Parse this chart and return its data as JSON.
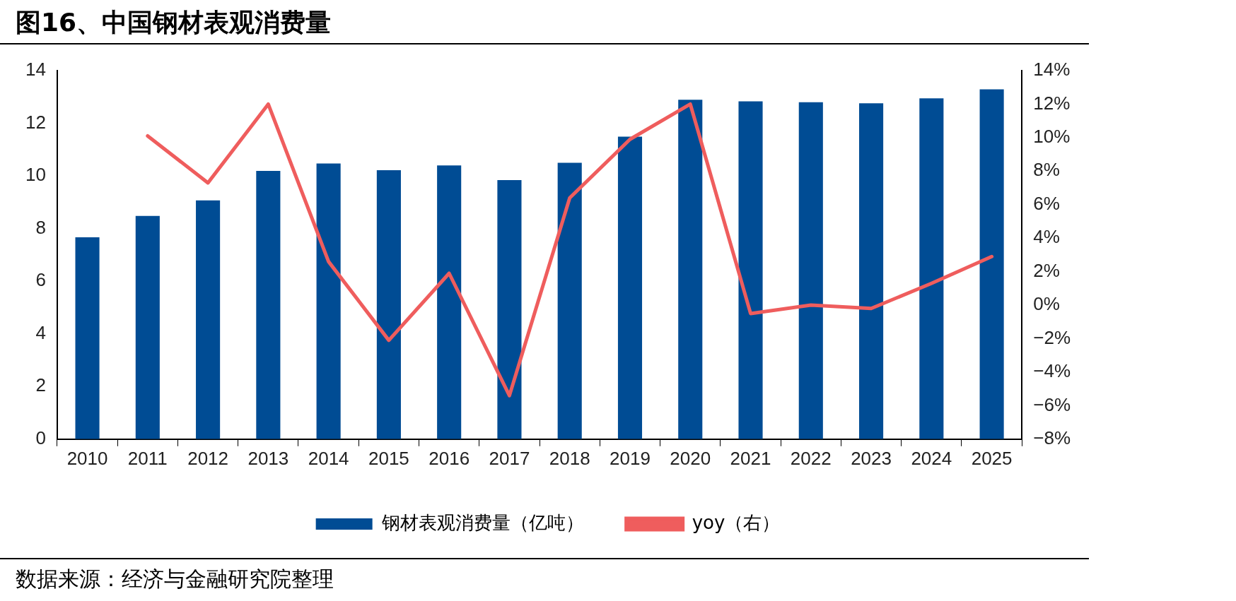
{
  "chart_data": {
    "type": "bar",
    "title": "图16、中国钢材表观消费量",
    "categories": [
      "2010",
      "2011",
      "2012",
      "2013",
      "2014",
      "2015",
      "2016",
      "2017",
      "2018",
      "2019",
      "2020",
      "2021",
      "2022",
      "2023",
      "2024",
      "2025"
    ],
    "series": [
      {
        "name": "钢材表观消费量（亿吨）",
        "color": "#004c94",
        "values": [
          7.67,
          8.48,
          9.07,
          10.19,
          10.47,
          10.22,
          10.4,
          9.84,
          10.5,
          11.49,
          12.89,
          12.83,
          12.8,
          12.76,
          12.95,
          13.29
        ]
      },
      {
        "name": "yoy（右）",
        "type": "line",
        "axis": "y2",
        "color": "#ef5d5d",
        "values": [
          null,
          10.1,
          7.3,
          12.0,
          2.6,
          -2.1,
          1.9,
          -5.4,
          6.4,
          9.9,
          12.0,
          -0.5,
          0.0,
          -0.2,
          1.3,
          2.9
        ]
      }
    ],
    "ylim": [
      0,
      14
    ],
    "yticks": [
      0,
      2,
      4,
      6,
      8,
      10,
      12,
      14
    ],
    "y2lim": [
      -8,
      14
    ],
    "y2ticks": [
      {
        "value": -8,
        "label": "−8%"
      },
      {
        "value": -6,
        "label": "−6%"
      },
      {
        "value": -4,
        "label": "−4%"
      },
      {
        "value": -2,
        "label": "−2%"
      },
      {
        "value": 0,
        "label": "0%"
      },
      {
        "value": 2,
        "label": "2%"
      },
      {
        "value": 4,
        "label": "4%"
      },
      {
        "value": 6,
        "label": "6%"
      },
      {
        "value": 8,
        "label": "8%"
      },
      {
        "value": 10,
        "label": "10%"
      },
      {
        "value": 12,
        "label": "12%"
      },
      {
        "value": 14,
        "label": "14%"
      }
    ],
    "grid": false,
    "legend": "bottom",
    "marker": "none",
    "line_style": "solid",
    "annotations": [
      "数据来源：经济与金融研究院整理"
    ]
  }
}
